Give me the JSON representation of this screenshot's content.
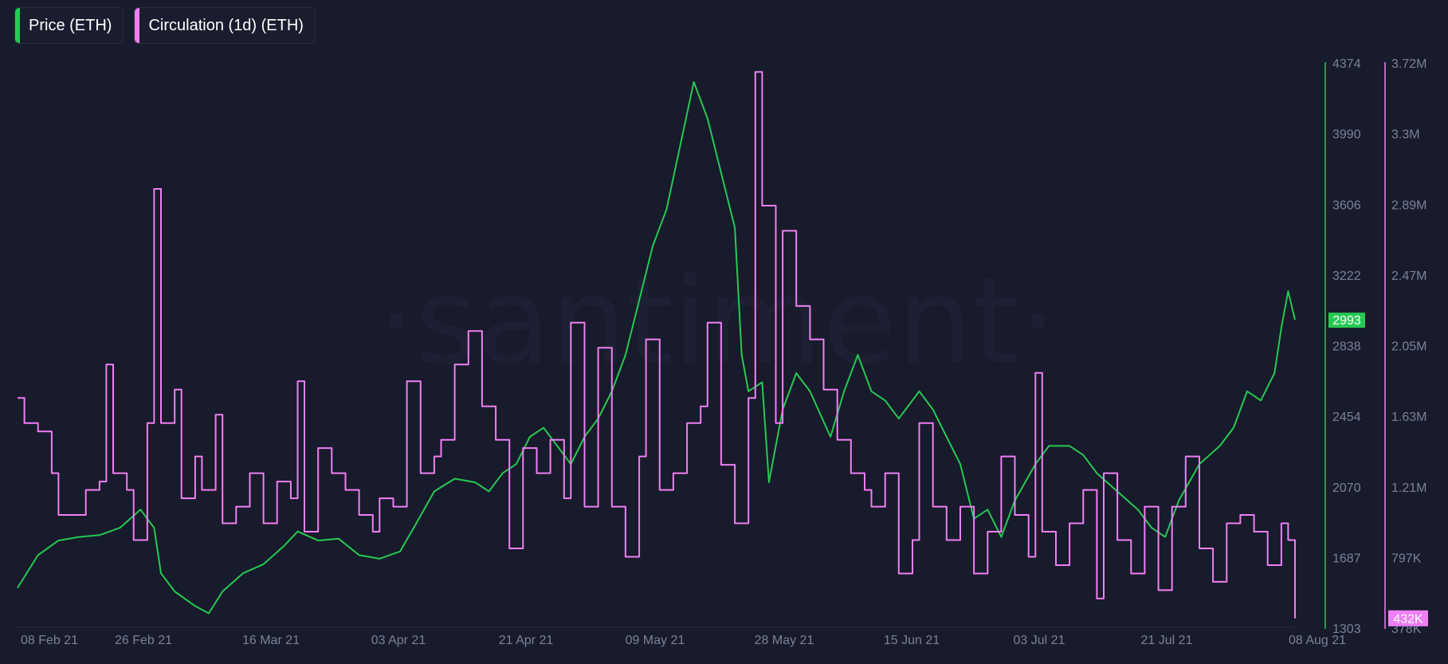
{
  "legend": [
    {
      "label": "Price (ETH)",
      "color": "#26c953"
    },
    {
      "label": "Circulation (1d) (ETH)",
      "color": "#f07ef5"
    }
  ],
  "watermark": "·santiment·",
  "chart_data": {
    "type": "line",
    "title": "",
    "x_start": "2021-02-02",
    "x_end": "2021-08-08",
    "x_ticks": [
      "08 Feb 21",
      "26 Feb 21",
      "16 Mar 21",
      "03 Apr 21",
      "21 Apr 21",
      "09 May 21",
      "28 May 21",
      "15 Jun 21",
      "03 Jul 21",
      "21 Jul 21",
      "08 Aug 21"
    ],
    "y_price": {
      "ticks": [
        "4374",
        "3990",
        "3606",
        "3222",
        "2838",
        "2454",
        "2070",
        "1687",
        "1303"
      ],
      "ylim": [
        1303,
        4374
      ],
      "last_value_label": "2993",
      "color": "#26c953"
    },
    "y_circulation": {
      "ticks": [
        "3.72M",
        "3.3M",
        "2.89M",
        "2.47M",
        "2.05M",
        "1.63M",
        "1.21M",
        "797K",
        "378K"
      ],
      "ylim": [
        378000,
        3720000
      ],
      "last_value_label": "432K",
      "color": "#f07ef5"
    },
    "series": [
      {
        "name": "Price (ETH)",
        "axis": "price",
        "points": [
          [
            "2021-02-02",
            1520
          ],
          [
            "2021-02-05",
            1700
          ],
          [
            "2021-02-08",
            1780
          ],
          [
            "2021-02-11",
            1800
          ],
          [
            "2021-02-14",
            1810
          ],
          [
            "2021-02-17",
            1850
          ],
          [
            "2021-02-20",
            1950
          ],
          [
            "2021-02-22",
            1850
          ],
          [
            "2021-02-23",
            1600
          ],
          [
            "2021-02-25",
            1500
          ],
          [
            "2021-02-28",
            1420
          ],
          [
            "2021-03-02",
            1380
          ],
          [
            "2021-03-04",
            1500
          ],
          [
            "2021-03-07",
            1600
          ],
          [
            "2021-03-10",
            1650
          ],
          [
            "2021-03-13",
            1750
          ],
          [
            "2021-03-15",
            1830
          ],
          [
            "2021-03-18",
            1780
          ],
          [
            "2021-03-21",
            1790
          ],
          [
            "2021-03-24",
            1700
          ],
          [
            "2021-03-27",
            1680
          ],
          [
            "2021-03-30",
            1720
          ],
          [
            "2021-04-01",
            1850
          ],
          [
            "2021-04-04",
            2050
          ],
          [
            "2021-04-07",
            2120
          ],
          [
            "2021-04-10",
            2100
          ],
          [
            "2021-04-12",
            2050
          ],
          [
            "2021-04-14",
            2150
          ],
          [
            "2021-04-16",
            2200
          ],
          [
            "2021-04-18",
            2350
          ],
          [
            "2021-04-20",
            2400
          ],
          [
            "2021-04-22",
            2300
          ],
          [
            "2021-04-24",
            2200
          ],
          [
            "2021-04-26",
            2350
          ],
          [
            "2021-04-28",
            2450
          ],
          [
            "2021-04-30",
            2600
          ],
          [
            "2021-05-02",
            2800
          ],
          [
            "2021-05-04",
            3100
          ],
          [
            "2021-05-06",
            3400
          ],
          [
            "2021-05-08",
            3600
          ],
          [
            "2021-05-10",
            3950
          ],
          [
            "2021-05-12",
            4300
          ],
          [
            "2021-05-14",
            4100
          ],
          [
            "2021-05-16",
            3800
          ],
          [
            "2021-05-18",
            3500
          ],
          [
            "2021-05-19",
            2800
          ],
          [
            "2021-05-20",
            2600
          ],
          [
            "2021-05-22",
            2650
          ],
          [
            "2021-05-23",
            2100
          ],
          [
            "2021-05-25",
            2500
          ],
          [
            "2021-05-27",
            2700
          ],
          [
            "2021-05-29",
            2600
          ],
          [
            "2021-06-01",
            2350
          ],
          [
            "2021-06-03",
            2600
          ],
          [
            "2021-06-05",
            2800
          ],
          [
            "2021-06-07",
            2600
          ],
          [
            "2021-06-09",
            2550
          ],
          [
            "2021-06-11",
            2450
          ],
          [
            "2021-06-14",
            2600
          ],
          [
            "2021-06-16",
            2500
          ],
          [
            "2021-06-18",
            2350
          ],
          [
            "2021-06-20",
            2200
          ],
          [
            "2021-06-22",
            1900
          ],
          [
            "2021-06-24",
            1950
          ],
          [
            "2021-06-26",
            1800
          ],
          [
            "2021-06-28",
            2000
          ],
          [
            "2021-07-01",
            2200
          ],
          [
            "2021-07-03",
            2300
          ],
          [
            "2021-07-06",
            2300
          ],
          [
            "2021-07-08",
            2250
          ],
          [
            "2021-07-10",
            2150
          ],
          [
            "2021-07-13",
            2050
          ],
          [
            "2021-07-16",
            1950
          ],
          [
            "2021-07-18",
            1850
          ],
          [
            "2021-07-20",
            1800
          ],
          [
            "2021-07-22",
            2000
          ],
          [
            "2021-07-25",
            2200
          ],
          [
            "2021-07-28",
            2300
          ],
          [
            "2021-07-30",
            2400
          ],
          [
            "2021-08-01",
            2600
          ],
          [
            "2021-08-03",
            2550
          ],
          [
            "2021-08-05",
            2700
          ],
          [
            "2021-08-06",
            2950
          ],
          [
            "2021-08-07",
            3150
          ],
          [
            "2021-08-08",
            2993
          ]
        ]
      },
      {
        "name": "Circulation (1d) (ETH)",
        "axis": "circulation",
        "points": [
          [
            "2021-02-02",
            1750000
          ],
          [
            "2021-02-03",
            1600000
          ],
          [
            "2021-02-05",
            1550000
          ],
          [
            "2021-02-07",
            1300000
          ],
          [
            "2021-02-08",
            1050000
          ],
          [
            "2021-02-10",
            1050000
          ],
          [
            "2021-02-12",
            1200000
          ],
          [
            "2021-02-14",
            1250000
          ],
          [
            "2021-02-15",
            1950000
          ],
          [
            "2021-02-16",
            1300000
          ],
          [
            "2021-02-18",
            1200000
          ],
          [
            "2021-02-19",
            900000
          ],
          [
            "2021-02-21",
            1600000
          ],
          [
            "2021-02-22",
            3000000
          ],
          [
            "2021-02-23",
            1600000
          ],
          [
            "2021-02-25",
            1800000
          ],
          [
            "2021-02-26",
            1150000
          ],
          [
            "2021-02-28",
            1400000
          ],
          [
            "2021-03-01",
            1200000
          ],
          [
            "2021-03-03",
            1650000
          ],
          [
            "2021-03-04",
            1000000
          ],
          [
            "2021-03-06",
            1100000
          ],
          [
            "2021-03-08",
            1300000
          ],
          [
            "2021-03-10",
            1000000
          ],
          [
            "2021-03-12",
            1250000
          ],
          [
            "2021-03-14",
            1150000
          ],
          [
            "2021-03-15",
            1850000
          ],
          [
            "2021-03-16",
            950000
          ],
          [
            "2021-03-18",
            1450000
          ],
          [
            "2021-03-20",
            1300000
          ],
          [
            "2021-03-22",
            1200000
          ],
          [
            "2021-03-24",
            1050000
          ],
          [
            "2021-03-26",
            950000
          ],
          [
            "2021-03-27",
            1150000
          ],
          [
            "2021-03-29",
            1100000
          ],
          [
            "2021-03-31",
            1850000
          ],
          [
            "2021-04-02",
            1300000
          ],
          [
            "2021-04-04",
            1400000
          ],
          [
            "2021-04-05",
            1500000
          ],
          [
            "2021-04-07",
            1950000
          ],
          [
            "2021-04-09",
            2150000
          ],
          [
            "2021-04-11",
            1700000
          ],
          [
            "2021-04-13",
            1500000
          ],
          [
            "2021-04-15",
            850000
          ],
          [
            "2021-04-17",
            1450000
          ],
          [
            "2021-04-19",
            1300000
          ],
          [
            "2021-04-21",
            1500000
          ],
          [
            "2021-04-23",
            1150000
          ],
          [
            "2021-04-24",
            2200000
          ],
          [
            "2021-04-26",
            1100000
          ],
          [
            "2021-04-28",
            2050000
          ],
          [
            "2021-04-30",
            1100000
          ],
          [
            "2021-05-02",
            800000
          ],
          [
            "2021-05-04",
            1400000
          ],
          [
            "2021-05-05",
            2100000
          ],
          [
            "2021-05-07",
            1200000
          ],
          [
            "2021-05-09",
            1300000
          ],
          [
            "2021-05-11",
            1600000
          ],
          [
            "2021-05-13",
            1700000
          ],
          [
            "2021-05-14",
            2200000
          ],
          [
            "2021-05-16",
            1350000
          ],
          [
            "2021-05-18",
            1000000
          ],
          [
            "2021-05-20",
            1750000
          ],
          [
            "2021-05-21",
            3700000
          ],
          [
            "2021-05-22",
            2900000
          ],
          [
            "2021-05-24",
            1600000
          ],
          [
            "2021-05-25",
            2750000
          ],
          [
            "2021-05-27",
            2300000
          ],
          [
            "2021-05-29",
            2100000
          ],
          [
            "2021-05-31",
            1800000
          ],
          [
            "2021-06-02",
            1500000
          ],
          [
            "2021-06-04",
            1300000
          ],
          [
            "2021-06-06",
            1200000
          ],
          [
            "2021-06-07",
            1100000
          ],
          [
            "2021-06-09",
            1300000
          ],
          [
            "2021-06-11",
            700000
          ],
          [
            "2021-06-13",
            900000
          ],
          [
            "2021-06-14",
            1600000
          ],
          [
            "2021-06-16",
            1100000
          ],
          [
            "2021-06-18",
            900000
          ],
          [
            "2021-06-20",
            1100000
          ],
          [
            "2021-06-22",
            700000
          ],
          [
            "2021-06-24",
            950000
          ],
          [
            "2021-06-26",
            1400000
          ],
          [
            "2021-06-28",
            1050000
          ],
          [
            "2021-06-30",
            800000
          ],
          [
            "2021-07-01",
            1900000
          ],
          [
            "2021-07-02",
            950000
          ],
          [
            "2021-07-04",
            750000
          ],
          [
            "2021-07-06",
            1000000
          ],
          [
            "2021-07-08",
            1200000
          ],
          [
            "2021-07-10",
            550000
          ],
          [
            "2021-07-11",
            1300000
          ],
          [
            "2021-07-13",
            900000
          ],
          [
            "2021-07-15",
            700000
          ],
          [
            "2021-07-17",
            1100000
          ],
          [
            "2021-07-19",
            600000
          ],
          [
            "2021-07-21",
            1100000
          ],
          [
            "2021-07-23",
            1400000
          ],
          [
            "2021-07-25",
            850000
          ],
          [
            "2021-07-27",
            650000
          ],
          [
            "2021-07-29",
            1000000
          ],
          [
            "2021-07-31",
            1050000
          ],
          [
            "2021-08-02",
            950000
          ],
          [
            "2021-08-04",
            750000
          ],
          [
            "2021-08-06",
            1000000
          ],
          [
            "2021-08-07",
            900000
          ],
          [
            "2021-08-08",
            432000
          ]
        ]
      }
    ]
  }
}
